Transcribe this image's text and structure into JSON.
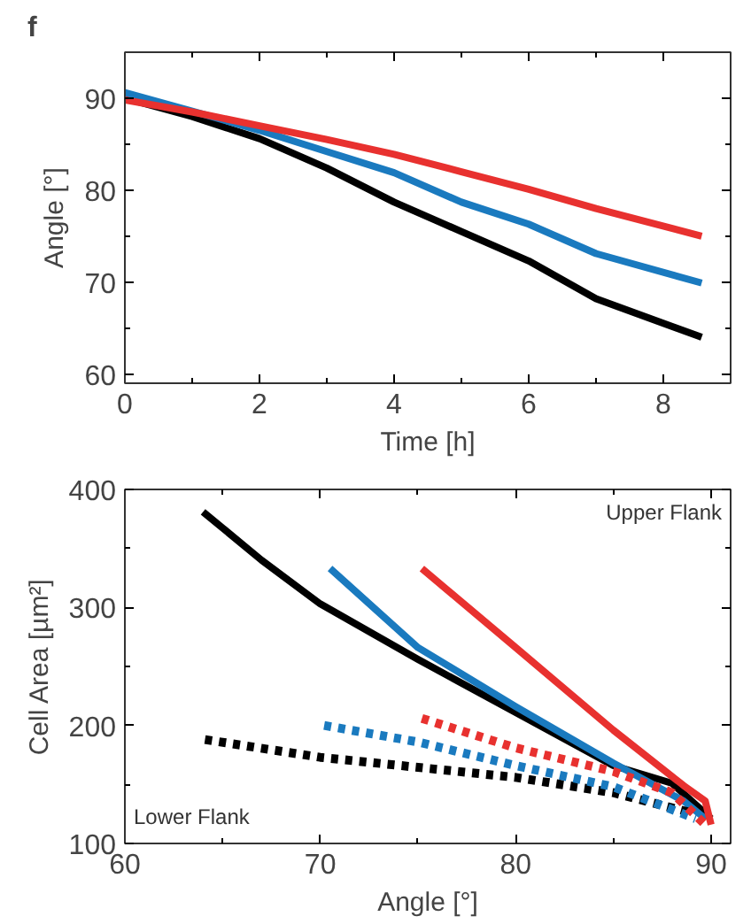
{
  "chart_data": [
    {
      "type": "line",
      "title": "f",
      "xlabel": "Time [h]",
      "ylabel": "Angle [°]",
      "xlim": [
        0,
        9
      ],
      "ylim": [
        59,
        95
      ],
      "xticks": [
        0,
        2,
        4,
        6,
        8
      ],
      "yticks": [
        60,
        70,
        80,
        90
      ],
      "grid": false,
      "marker": "none",
      "line_style": "solid",
      "series": [
        {
          "color": "#000000",
          "x": [
            0,
            1,
            2,
            3,
            4,
            5,
            6,
            7,
            8.57
          ],
          "values": [
            90,
            88,
            85.6,
            82.4,
            78.7,
            75.5,
            72.3,
            68.2,
            64
          ]
        },
        {
          "color": "#1a7abf",
          "x": [
            0,
            1,
            2,
            3,
            4,
            5,
            6,
            7,
            8.57
          ],
          "values": [
            90.6,
            88.6,
            86.5,
            84.2,
            81.9,
            78.7,
            76.3,
            73.1,
            69.9
          ]
        },
        {
          "color": "#e8312f",
          "x": [
            0,
            1,
            2,
            3,
            4,
            5,
            6,
            7,
            8.57
          ],
          "values": [
            89.8,
            88.5,
            87,
            85.5,
            83.9,
            82,
            80.1,
            78,
            75
          ]
        }
      ]
    },
    {
      "type": "line",
      "xlabel": "Angle [°]",
      "ylabel": "Cell Area [µm²]",
      "xlim": [
        60,
        91
      ],
      "ylim": [
        100,
        400
      ],
      "xticks": [
        60,
        70,
        80,
        90
      ],
      "yticks": [
        100,
        200,
        300,
        400
      ],
      "grid": false,
      "marker": "none",
      "annotations": [
        "Upper Flank",
        "Lower Flank"
      ],
      "series": [
        {
          "color": "#000000",
          "line_style": "solid",
          "x": [
            64,
            67,
            70,
            75,
            80,
            85,
            88,
            90
          ],
          "values": [
            381,
            340,
            303,
            256,
            211,
            166,
            151,
            121
          ]
        },
        {
          "color": "#1a7abf",
          "line_style": "solid",
          "x": [
            70.5,
            75,
            80,
            85,
            88.6,
            89.7
          ],
          "values": [
            333,
            266,
            216,
            168,
            136,
            121
          ]
        },
        {
          "color": "#e8312f",
          "line_style": "solid",
          "x": [
            75.2,
            80,
            85,
            88.6,
            89.7,
            90
          ],
          "values": [
            333,
            266,
            196,
            149,
            136,
            116
          ]
        },
        {
          "color": "#000000",
          "line_style": "dotted",
          "x": [
            64.1,
            70,
            80,
            85,
            89
          ],
          "values": [
            188,
            173,
            156,
            143,
            126
          ]
        },
        {
          "color": "#1a7abf",
          "line_style": "dotted",
          "x": [
            70.2,
            75,
            80,
            85,
            89.2
          ],
          "values": [
            200,
            186,
            166,
            148,
            121
          ]
        },
        {
          "color": "#e8312f",
          "line_style": "dotted",
          "x": [
            75.2,
            80,
            85,
            88,
            89.7
          ],
          "values": [
            206,
            181,
            161,
            143,
            116
          ]
        }
      ]
    }
  ]
}
